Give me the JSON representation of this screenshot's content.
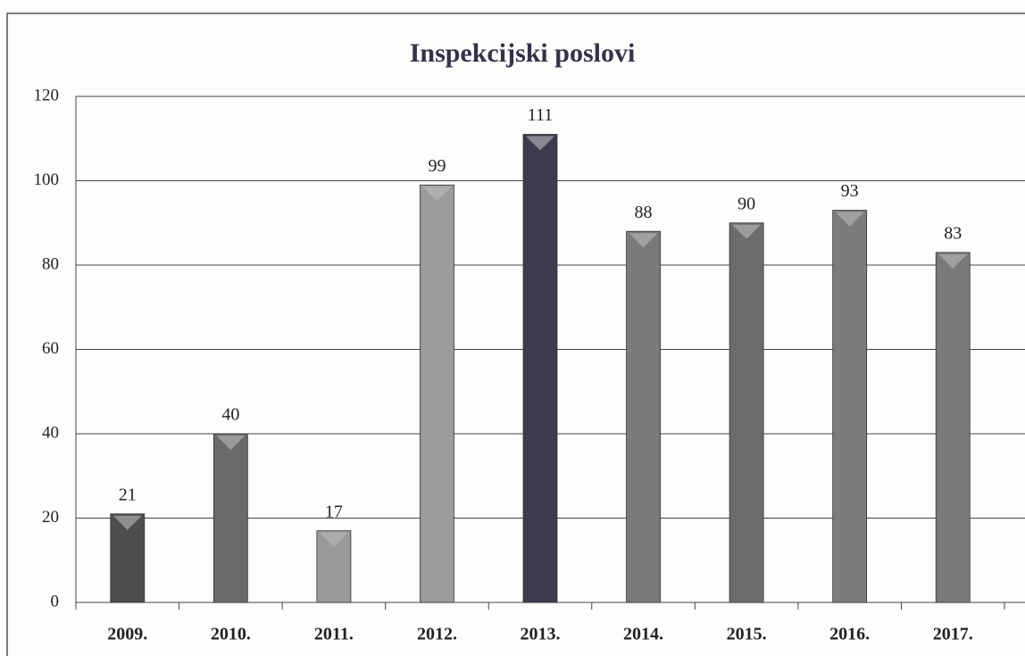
{
  "chart_data": {
    "type": "bar",
    "title": "Inspekcijski poslovi",
    "categories": [
      "2009.",
      "2010.",
      "2011.",
      "2012.",
      "2013.",
      "2014.",
      "2015.",
      "2016.",
      "2017."
    ],
    "values": [
      21,
      40,
      17,
      99,
      111,
      88,
      90,
      93,
      83
    ],
    "colors": [
      "#4e4e4e",
      "#6a6a6a",
      "#9a9a9a",
      "#9c9c9c",
      "#3c3c4e",
      "#7a7a7a",
      "#6c6c6c",
      "#7c7c7c",
      "#7a7a7a"
    ],
    "ylim": [
      0,
      120
    ],
    "yticks": [
      0,
      20,
      40,
      60,
      80,
      100,
      120
    ],
    "grid": true
  }
}
